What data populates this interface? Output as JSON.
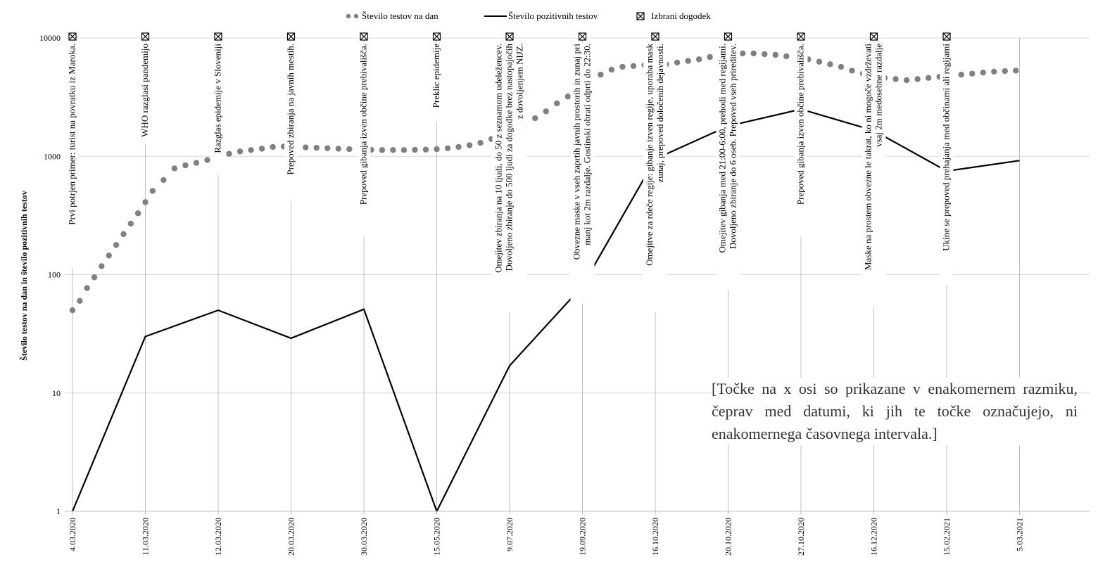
{
  "chart_data": {
    "type": "line",
    "ylabel": "Število testov na dan in število pozitivnih testov",
    "yscale": "log",
    "ylim": [
      1,
      10000
    ],
    "yticks": [
      "1",
      "10",
      "100",
      "1000",
      "10000"
    ],
    "categories": [
      "4.03.2020",
      "11.03.2020",
      "12.03.2020",
      "20.03.2020",
      "30.03.2020",
      "15.05.2020",
      "9.07.2020",
      "19.09.2020",
      "16.10.2020",
      "20.10.2020",
      "27.10.2020",
      "16.12.2020",
      "15.02.2021",
      "5.03.2021"
    ],
    "legend": {
      "placement": "top",
      "items": [
        {
          "label": "Število testov na dan",
          "marker": "dots",
          "color": "#808080"
        },
        {
          "label": "Število pozitivnih testov",
          "marker": "line",
          "color": "#000000"
        },
        {
          "label": "Izbrani dogodek",
          "marker": "x-box",
          "color": "#000000"
        }
      ]
    },
    "series": [
      {
        "name": "Število testov na dan",
        "style": "dots",
        "color": "#808080",
        "x": [
          0,
          0.1,
          0.2,
          0.3,
          0.4,
          0.5,
          0.6,
          0.7,
          0.8,
          0.9,
          1.0,
          1.1,
          1.25,
          1.4,
          1.55,
          1.7,
          1.85,
          2.0,
          2.15,
          2.3,
          2.45,
          2.6,
          2.75,
          2.9,
          3.05,
          3.2,
          3.35,
          3.5,
          3.65,
          3.8,
          3.95,
          4.1,
          4.25,
          4.4,
          4.55,
          4.7,
          4.85,
          5.0,
          5.15,
          5.3,
          5.45,
          5.6,
          5.75,
          5.9,
          6.05,
          6.2,
          6.35,
          6.5,
          6.65,
          6.8,
          6.95,
          7.1,
          7.25,
          7.4,
          7.55,
          7.7,
          7.85,
          8.0,
          8.15,
          8.3,
          8.45,
          8.6,
          8.75,
          8.9,
          9.05,
          9.2,
          9.35,
          9.5,
          9.65,
          9.8,
          9.95,
          10.1,
          10.25,
          10.4,
          10.55,
          10.7,
          10.85,
          11.0,
          11.15,
          11.3,
          11.45,
          11.6,
          11.75,
          11.9,
          12.05,
          12.2,
          12.35,
          12.5,
          12.65,
          12.8,
          12.95
        ],
        "values": [
          50,
          60,
          77,
          95,
          118,
          145,
          178,
          220,
          270,
          330,
          410,
          510,
          630,
          790,
          840,
          880,
          930,
          990,
          1050,
          1100,
          1130,
          1160,
          1200,
          1210,
          1200,
          1190,
          1180,
          1170,
          1160,
          1150,
          1140,
          1135,
          1130,
          1130,
          1130,
          1135,
          1140,
          1150,
          1170,
          1200,
          1240,
          1300,
          1400,
          1550,
          1700,
          1850,
          2100,
          2400,
          2800,
          3200,
          3700,
          4300,
          4900,
          5400,
          5700,
          5800,
          5900,
          5950,
          6000,
          6200,
          6400,
          6600,
          6900,
          7100,
          7300,
          7400,
          7400,
          7300,
          7200,
          7000,
          6800,
          6600,
          6300,
          6000,
          5700,
          5300,
          5000,
          4800,
          4600,
          4500,
          4400,
          4500,
          4600,
          4700,
          4800,
          4900,
          5000,
          5100,
          5200,
          5250,
          5300
        ]
      },
      {
        "name": "Število pozitivnih testov",
        "style": "line",
        "color": "#000000",
        "x": [
          0,
          1,
          2,
          3,
          4,
          5,
          6,
          7,
          8,
          9,
          10,
          11,
          12,
          13
        ],
        "values": [
          1,
          30,
          50,
          29,
          51,
          1,
          17,
          80,
          950,
          1800,
          2500,
          1650,
          750,
          920
        ]
      }
    ],
    "events": [
      {
        "index": 0,
        "label": "Prvi potrjen primer: turist na povratku iz Maroka."
      },
      {
        "index": 1,
        "label": "WHO razglasi pandemijo"
      },
      {
        "index": 2,
        "label": "Razglas epidemije v Sloveniji"
      },
      {
        "index": 3,
        "label": "Prepoved zbiranja na javnih mestih."
      },
      {
        "index": 4,
        "label": "Prepoved gibanja izven občine prebivališča."
      },
      {
        "index": 5,
        "label": "Preklic epidemije"
      },
      {
        "index": 6,
        "label": "Omejitev zbiranja na 10 ljudi, do 50 z seznamom udeležencev. Dovoljeno zbiranje do 500 ljudi za dogodke brez nastopajočih z dovoljenjem NIJZ."
      },
      {
        "index": 7,
        "label": "Obvezne maske v vseh zaprtih javnih prostorih in zunaj pri manj kot 2m razdalje. Gostinski obrati odprti do 22:30."
      },
      {
        "index": 8,
        "label": "Omejitve za rdeče regije: gibanje izven regije, uporaba mask zunaj, prepoved določenih dejavnosti."
      },
      {
        "index": 9,
        "label": "Omejitev gibanja med 21:00-6:00, prehodi med regijami. Dovoljeno zbiranje do 6 oseb. Prepoved vseh prireditev."
      },
      {
        "index": 10,
        "label": "Prepoved gibanja izven občine prebivališča."
      },
      {
        "index": 11,
        "label": "Maske na prostem obvezne le takrat, ko ni mogoče vzdrževati vsaj 2m medosebne razdalje"
      },
      {
        "index": 12,
        "label": "Ukine se prepoved prehajanja med občinami ali regijami"
      }
    ],
    "annotation": "[Točke na x osi so prikazane v enakomernem razmiku, čeprav med datumi, ki jih te točke označujejo, ni enakomernega časovnega intervala.]",
    "grid": {
      "horizontal": true,
      "vertical": true
    }
  }
}
